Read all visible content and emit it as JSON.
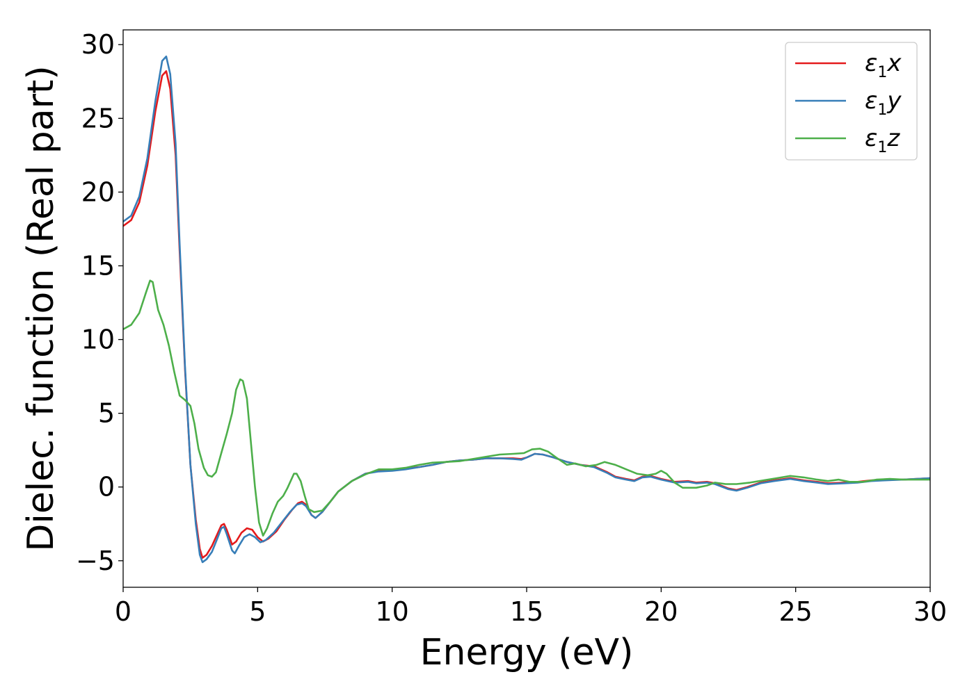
{
  "chart_data": {
    "type": "line",
    "xlabel": "Energy (eV)",
    "ylabel": "Dielec. function (Real part)",
    "xlim": [
      0,
      30
    ],
    "ylim": [
      -6.8,
      31
    ],
    "xticks": [
      0,
      5,
      10,
      15,
      20,
      25,
      30
    ],
    "yticks": [
      -5,
      0,
      5,
      10,
      15,
      20,
      25,
      30
    ],
    "grid": false,
    "legend_position": "top-right",
    "series": [
      {
        "name": "ε1x",
        "legend": {
          "base": "ε",
          "sub": "1",
          "tail": "x"
        },
        "color": "#e41a1c",
        "points": [
          [
            0,
            17.7
          ],
          [
            0.3,
            18.1
          ],
          [
            0.6,
            19.3
          ],
          [
            0.9,
            21.8
          ],
          [
            1.2,
            25.5
          ],
          [
            1.45,
            27.9
          ],
          [
            1.6,
            28.2
          ],
          [
            1.75,
            27.0
          ],
          [
            1.95,
            22.5
          ],
          [
            2.1,
            16.0
          ],
          [
            2.3,
            8.0
          ],
          [
            2.5,
            1.5
          ],
          [
            2.7,
            -2.2
          ],
          [
            2.85,
            -4.2
          ],
          [
            2.95,
            -4.8
          ],
          [
            3.1,
            -4.6
          ],
          [
            3.3,
            -4.0
          ],
          [
            3.5,
            -3.2
          ],
          [
            3.65,
            -2.6
          ],
          [
            3.75,
            -2.5
          ],
          [
            3.85,
            -2.9
          ],
          [
            4.05,
            -3.9
          ],
          [
            4.2,
            -3.7
          ],
          [
            4.4,
            -3.1
          ],
          [
            4.6,
            -2.8
          ],
          [
            4.8,
            -2.9
          ],
          [
            5.0,
            -3.4
          ],
          [
            5.2,
            -3.7
          ],
          [
            5.4,
            -3.5
          ],
          [
            5.7,
            -3.0
          ],
          [
            6.0,
            -2.2
          ],
          [
            6.3,
            -1.5
          ],
          [
            6.5,
            -1.1
          ],
          [
            6.65,
            -1.0
          ],
          [
            6.8,
            -1.2
          ],
          [
            7.0,
            -1.9
          ],
          [
            7.15,
            -2.1
          ],
          [
            7.4,
            -1.7
          ],
          [
            7.7,
            -1.0
          ],
          [
            8.0,
            -0.3
          ],
          [
            8.5,
            0.4
          ],
          [
            9.0,
            0.9
          ],
          [
            9.5,
            1.1
          ],
          [
            10.0,
            1.15
          ],
          [
            10.5,
            1.25
          ],
          [
            11.0,
            1.35
          ],
          [
            11.5,
            1.5
          ],
          [
            12.0,
            1.7
          ],
          [
            12.5,
            1.8
          ],
          [
            13.0,
            1.85
          ],
          [
            13.5,
            1.95
          ],
          [
            14.0,
            1.95
          ],
          [
            14.5,
            1.95
          ],
          [
            14.8,
            1.9
          ],
          [
            15.0,
            2.0
          ],
          [
            15.3,
            2.25
          ],
          [
            15.6,
            2.2
          ],
          [
            16.0,
            2.0
          ],
          [
            16.5,
            1.7
          ],
          [
            17.0,
            1.5
          ],
          [
            17.5,
            1.4
          ],
          [
            18.0,
            1.0
          ],
          [
            18.3,
            0.7
          ],
          [
            18.7,
            0.55
          ],
          [
            19.0,
            0.45
          ],
          [
            19.3,
            0.7
          ],
          [
            19.6,
            0.75
          ],
          [
            20.0,
            0.55
          ],
          [
            20.5,
            0.35
          ],
          [
            21.0,
            0.4
          ],
          [
            21.3,
            0.3
          ],
          [
            21.7,
            0.35
          ],
          [
            22.0,
            0.25
          ],
          [
            22.5,
            -0.1
          ],
          [
            22.8,
            -0.2
          ],
          [
            23.2,
            0.0
          ],
          [
            23.7,
            0.3
          ],
          [
            24.2,
            0.45
          ],
          [
            24.8,
            0.6
          ],
          [
            25.3,
            0.45
          ],
          [
            25.8,
            0.35
          ],
          [
            26.2,
            0.25
          ],
          [
            26.8,
            0.3
          ],
          [
            27.3,
            0.35
          ],
          [
            27.8,
            0.45
          ],
          [
            28.3,
            0.5
          ],
          [
            29.0,
            0.5
          ],
          [
            29.5,
            0.55
          ],
          [
            30.0,
            0.6
          ]
        ]
      },
      {
        "name": "ε1y",
        "legend": {
          "base": "ε",
          "sub": "1",
          "tail": "y"
        },
        "color": "#377eb8",
        "points": [
          [
            0,
            18.0
          ],
          [
            0.3,
            18.4
          ],
          [
            0.6,
            19.7
          ],
          [
            0.9,
            22.3
          ],
          [
            1.2,
            26.2
          ],
          [
            1.45,
            28.9
          ],
          [
            1.6,
            29.2
          ],
          [
            1.75,
            28.0
          ],
          [
            1.95,
            23.3
          ],
          [
            2.1,
            16.5
          ],
          [
            2.3,
            8.2
          ],
          [
            2.5,
            1.5
          ],
          [
            2.7,
            -2.5
          ],
          [
            2.85,
            -4.6
          ],
          [
            2.95,
            -5.1
          ],
          [
            3.1,
            -4.9
          ],
          [
            3.3,
            -4.4
          ],
          [
            3.5,
            -3.5
          ],
          [
            3.65,
            -2.8
          ],
          [
            3.75,
            -2.7
          ],
          [
            3.85,
            -3.2
          ],
          [
            4.05,
            -4.3
          ],
          [
            4.15,
            -4.5
          ],
          [
            4.3,
            -4.0
          ],
          [
            4.5,
            -3.4
          ],
          [
            4.7,
            -3.2
          ],
          [
            4.9,
            -3.4
          ],
          [
            5.1,
            -3.75
          ],
          [
            5.3,
            -3.6
          ],
          [
            5.6,
            -3.1
          ],
          [
            5.9,
            -2.4
          ],
          [
            6.2,
            -1.7
          ],
          [
            6.45,
            -1.2
          ],
          [
            6.65,
            -1.1
          ],
          [
            6.8,
            -1.3
          ],
          [
            7.0,
            -1.9
          ],
          [
            7.15,
            -2.1
          ],
          [
            7.4,
            -1.7
          ],
          [
            7.7,
            -1.0
          ],
          [
            8.0,
            -0.3
          ],
          [
            8.5,
            0.4
          ],
          [
            9.0,
            0.9
          ],
          [
            9.5,
            1.05
          ],
          [
            10.0,
            1.1
          ],
          [
            10.5,
            1.2
          ],
          [
            11.0,
            1.35
          ],
          [
            11.5,
            1.5
          ],
          [
            12.0,
            1.7
          ],
          [
            12.5,
            1.8
          ],
          [
            13.0,
            1.85
          ],
          [
            13.5,
            1.95
          ],
          [
            14.0,
            1.95
          ],
          [
            14.5,
            1.9
          ],
          [
            14.8,
            1.85
          ],
          [
            15.0,
            2.0
          ],
          [
            15.3,
            2.25
          ],
          [
            15.6,
            2.2
          ],
          [
            16.0,
            2.0
          ],
          [
            16.5,
            1.7
          ],
          [
            17.0,
            1.5
          ],
          [
            17.5,
            1.35
          ],
          [
            18.0,
            0.95
          ],
          [
            18.3,
            0.65
          ],
          [
            18.7,
            0.5
          ],
          [
            19.0,
            0.4
          ],
          [
            19.3,
            0.65
          ],
          [
            19.6,
            0.7
          ],
          [
            20.0,
            0.5
          ],
          [
            20.5,
            0.3
          ],
          [
            21.0,
            0.35
          ],
          [
            21.3,
            0.25
          ],
          [
            21.7,
            0.3
          ],
          [
            22.0,
            0.2
          ],
          [
            22.5,
            -0.15
          ],
          [
            22.8,
            -0.25
          ],
          [
            23.2,
            -0.05
          ],
          [
            23.7,
            0.25
          ],
          [
            24.2,
            0.4
          ],
          [
            24.8,
            0.55
          ],
          [
            25.3,
            0.4
          ],
          [
            25.8,
            0.3
          ],
          [
            26.2,
            0.2
          ],
          [
            26.8,
            0.25
          ],
          [
            27.3,
            0.3
          ],
          [
            27.8,
            0.4
          ],
          [
            28.3,
            0.45
          ],
          [
            29.0,
            0.5
          ],
          [
            29.5,
            0.55
          ],
          [
            30.0,
            0.6
          ]
        ]
      },
      {
        "name": "ε1z",
        "legend": {
          "base": "ε",
          "sub": "1",
          "tail": "z"
        },
        "color": "#4daf4a",
        "points": [
          [
            0,
            10.7
          ],
          [
            0.3,
            11.0
          ],
          [
            0.6,
            11.8
          ],
          [
            0.85,
            13.2
          ],
          [
            1.0,
            14.0
          ],
          [
            1.1,
            13.9
          ],
          [
            1.3,
            12.0
          ],
          [
            1.5,
            11.0
          ],
          [
            1.7,
            9.6
          ],
          [
            1.9,
            7.8
          ],
          [
            2.1,
            6.2
          ],
          [
            2.3,
            5.9
          ],
          [
            2.5,
            5.5
          ],
          [
            2.65,
            4.3
          ],
          [
            2.8,
            2.6
          ],
          [
            3.0,
            1.3
          ],
          [
            3.15,
            0.8
          ],
          [
            3.3,
            0.7
          ],
          [
            3.45,
            1.0
          ],
          [
            3.65,
            2.3
          ],
          [
            3.85,
            3.6
          ],
          [
            4.05,
            5.0
          ],
          [
            4.2,
            6.6
          ],
          [
            4.35,
            7.3
          ],
          [
            4.45,
            7.2
          ],
          [
            4.6,
            6.0
          ],
          [
            4.75,
            3.0
          ],
          [
            4.9,
            0.0
          ],
          [
            5.05,
            -2.4
          ],
          [
            5.2,
            -3.3
          ],
          [
            5.35,
            -2.8
          ],
          [
            5.55,
            -1.8
          ],
          [
            5.75,
            -1.0
          ],
          [
            5.95,
            -0.6
          ],
          [
            6.1,
            -0.1
          ],
          [
            6.25,
            0.5
          ],
          [
            6.35,
            0.9
          ],
          [
            6.45,
            0.9
          ],
          [
            6.6,
            0.4
          ],
          [
            6.75,
            -0.6
          ],
          [
            6.9,
            -1.5
          ],
          [
            7.1,
            -1.7
          ],
          [
            7.4,
            -1.6
          ],
          [
            7.7,
            -1.0
          ],
          [
            8.0,
            -0.3
          ],
          [
            8.5,
            0.4
          ],
          [
            9.0,
            0.85
          ],
          [
            9.5,
            1.2
          ],
          [
            10.0,
            1.2
          ],
          [
            10.5,
            1.3
          ],
          [
            11.0,
            1.5
          ],
          [
            11.5,
            1.65
          ],
          [
            12.0,
            1.7
          ],
          [
            12.5,
            1.75
          ],
          [
            13.0,
            1.9
          ],
          [
            13.5,
            2.05
          ],
          [
            14.0,
            2.2
          ],
          [
            14.5,
            2.25
          ],
          [
            14.9,
            2.3
          ],
          [
            15.2,
            2.55
          ],
          [
            15.5,
            2.6
          ],
          [
            15.8,
            2.4
          ],
          [
            16.1,
            2.0
          ],
          [
            16.5,
            1.5
          ],
          [
            16.8,
            1.6
          ],
          [
            17.2,
            1.4
          ],
          [
            17.6,
            1.5
          ],
          [
            17.9,
            1.7
          ],
          [
            18.3,
            1.5
          ],
          [
            18.7,
            1.2
          ],
          [
            19.1,
            0.9
          ],
          [
            19.5,
            0.8
          ],
          [
            19.8,
            0.9
          ],
          [
            20.0,
            1.1
          ],
          [
            20.2,
            0.9
          ],
          [
            20.5,
            0.3
          ],
          [
            20.8,
            -0.05
          ],
          [
            21.3,
            -0.05
          ],
          [
            21.7,
            0.1
          ],
          [
            22.0,
            0.3
          ],
          [
            22.4,
            0.2
          ],
          [
            22.8,
            0.2
          ],
          [
            23.3,
            0.3
          ],
          [
            23.8,
            0.45
          ],
          [
            24.3,
            0.6
          ],
          [
            24.8,
            0.75
          ],
          [
            25.3,
            0.65
          ],
          [
            25.8,
            0.5
          ],
          [
            26.2,
            0.4
          ],
          [
            26.6,
            0.5
          ],
          [
            27.0,
            0.35
          ],
          [
            27.5,
            0.35
          ],
          [
            28.0,
            0.5
          ],
          [
            28.5,
            0.55
          ],
          [
            29.0,
            0.5
          ],
          [
            29.5,
            0.5
          ],
          [
            30.0,
            0.5
          ]
        ]
      }
    ]
  }
}
